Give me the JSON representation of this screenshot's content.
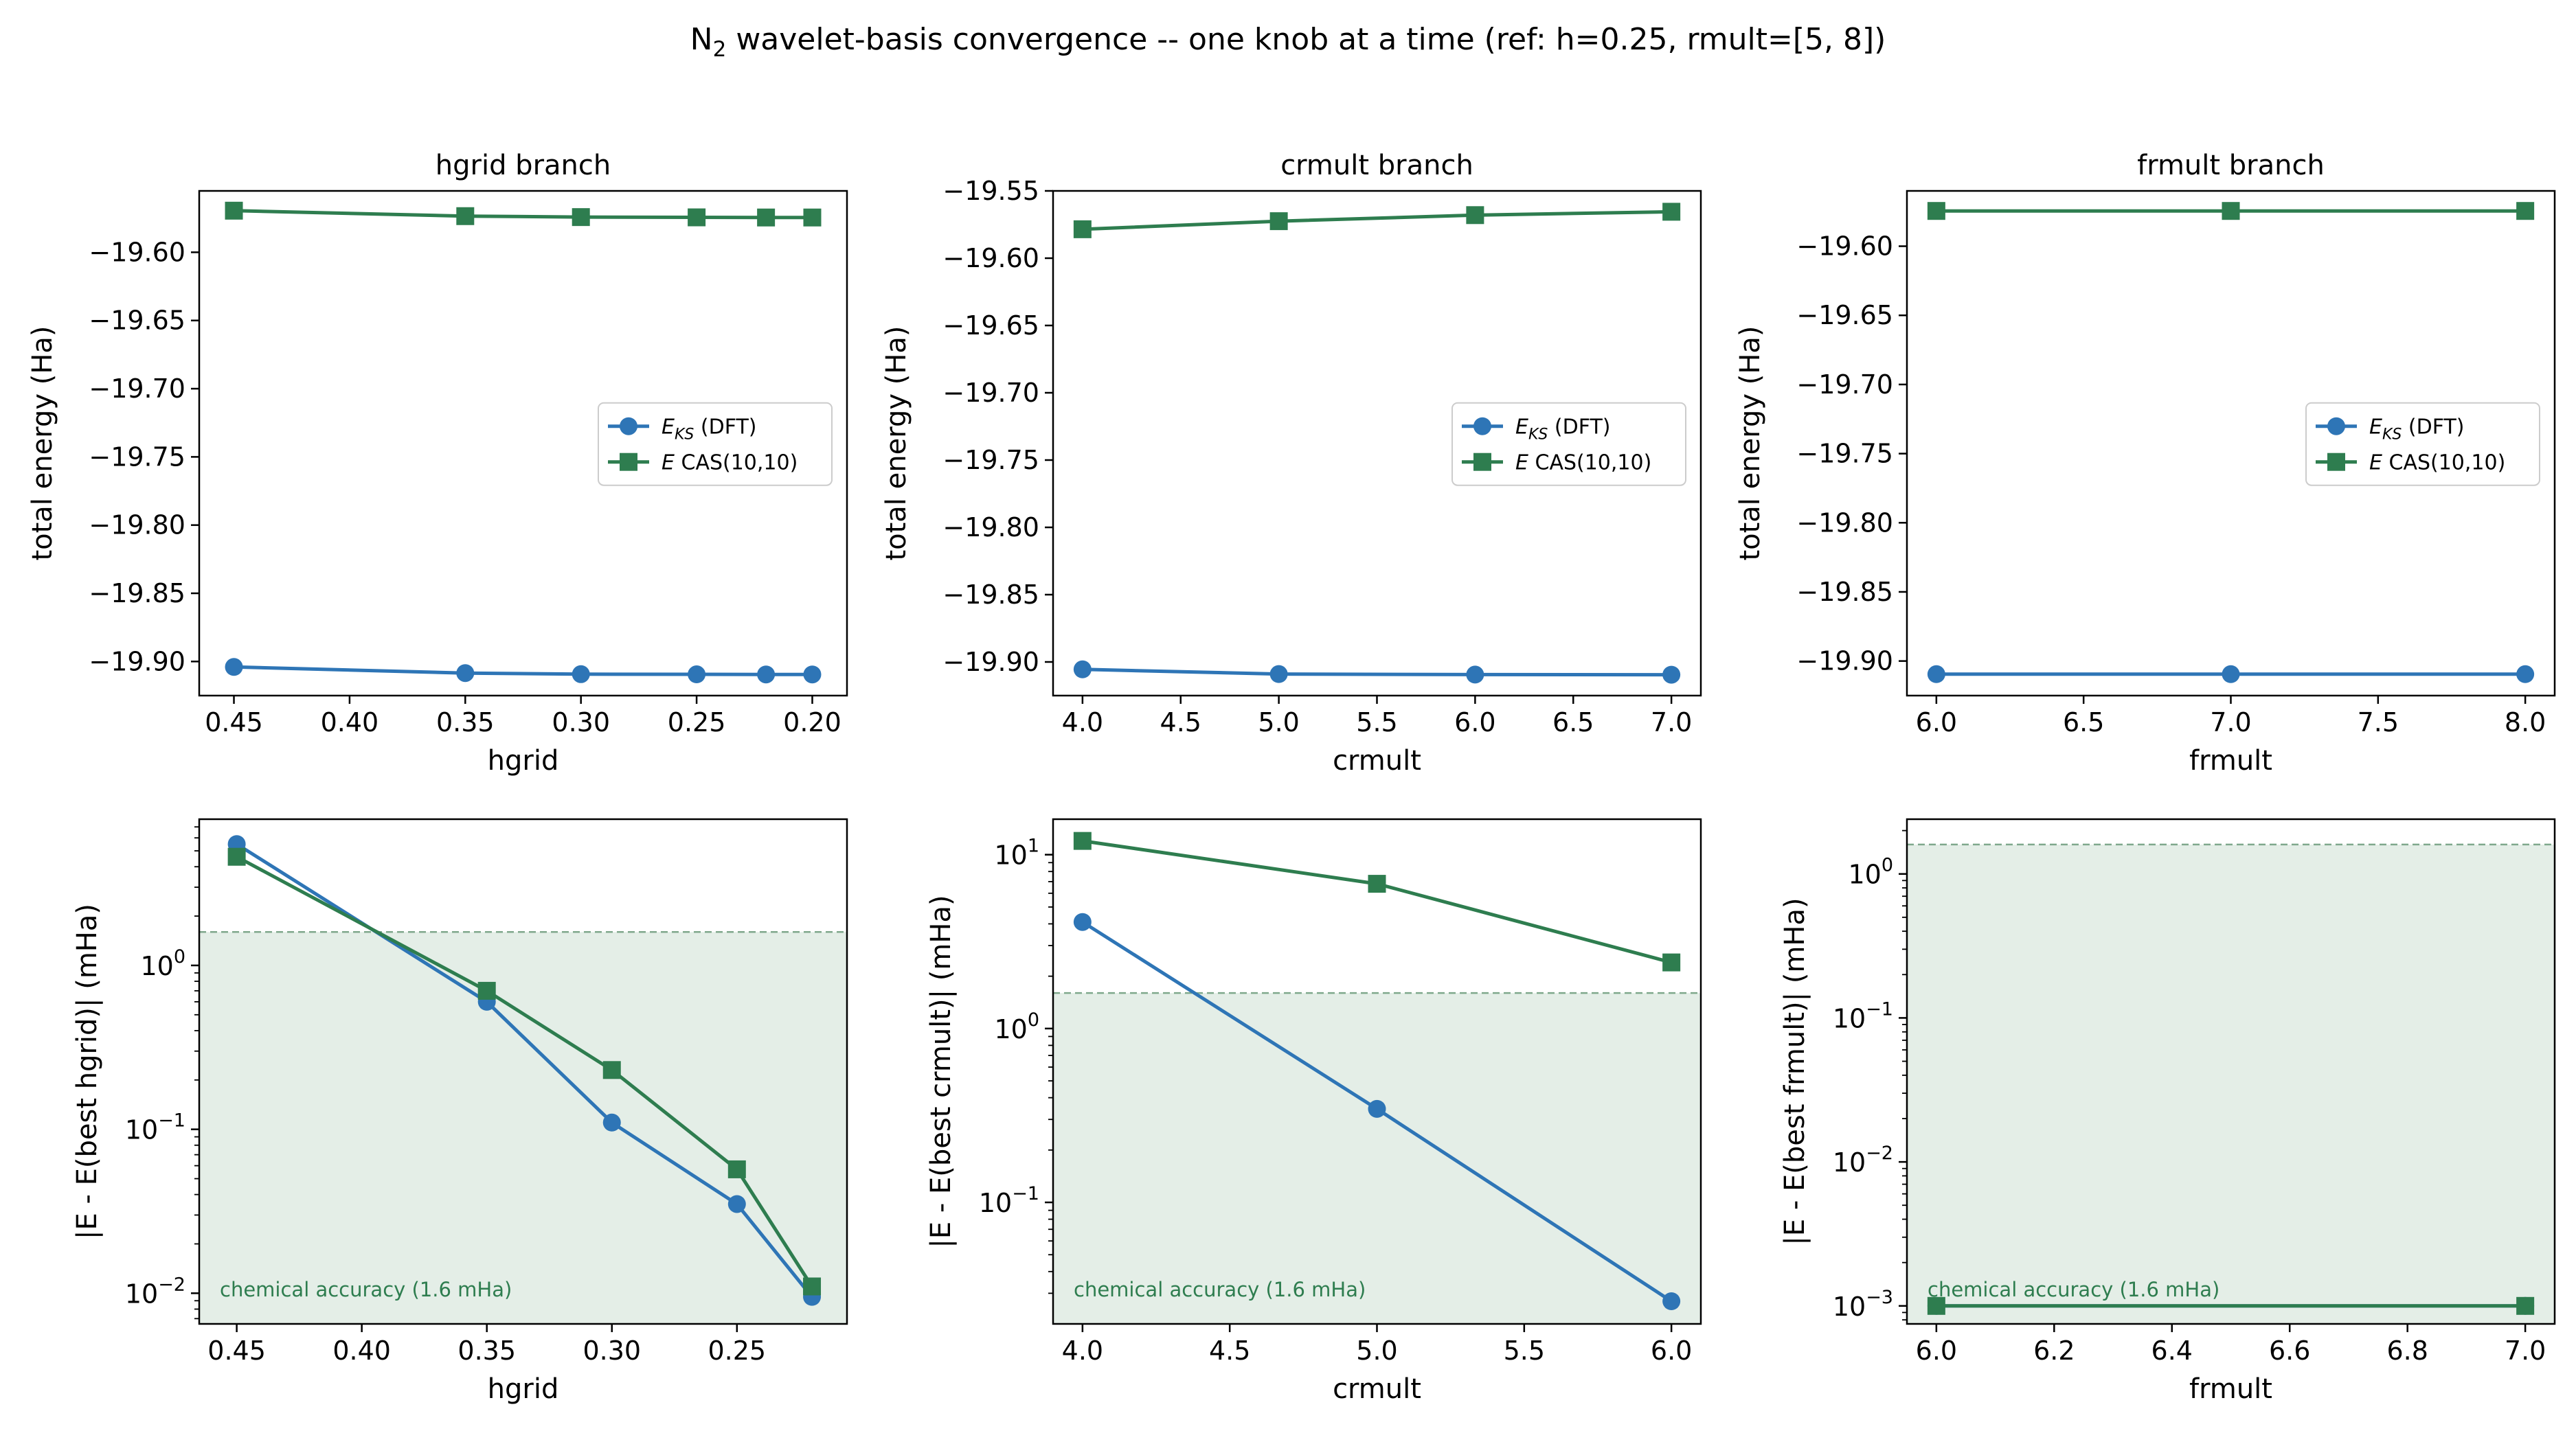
{
  "figure": {
    "title_main": "N",
    "title_sub": "2",
    "title_rest": " wavelet-basis convergence -- one knob at a time (ref: h=0.25, rmult=[5, 8])"
  },
  "legend_labels": {
    "dft_sym": "E",
    "dft_sub": "KS",
    "dft_rest": " (DFT)",
    "cas_sym": "E",
    "cas_rest": " CAS(10,10)"
  },
  "threshold": {
    "value": 1.6,
    "label": "chemical accuracy (1.6 mHa)"
  },
  "colors": {
    "dft": "#2e75b6",
    "cas": "#2e7d4f",
    "shade": "#e4eee7",
    "threshold_line": "#7fa88c"
  },
  "chart_data": [
    {
      "type": "line",
      "title": "hgrid branch",
      "xlabel": "hgrid",
      "ylabel": "total energy (Ha)",
      "x_inverted": true,
      "xlim": [
        0.465,
        0.185
      ],
      "ylim": [
        -19.925,
        -19.555
      ],
      "xticks": [
        0.45,
        0.4,
        0.35,
        0.3,
        0.25,
        0.2
      ],
      "xtick_labels": [
        "0.45",
        "0.40",
        "0.35",
        "0.30",
        "0.25",
        "0.20"
      ],
      "yticks": [
        -19.6,
        -19.65,
        -19.7,
        -19.75,
        -19.8,
        -19.85,
        -19.9
      ],
      "ytick_labels": [
        "−19.60",
        "−19.65",
        "−19.70",
        "−19.75",
        "−19.80",
        "−19.85",
        "−19.90"
      ],
      "x": [
        0.45,
        0.35,
        0.3,
        0.25,
        0.22,
        0.2
      ],
      "legend": "center-right",
      "series": [
        {
          "key": "dft",
          "marker": "circle",
          "values": [
            -19.904,
            -19.9085,
            -19.9093,
            -19.9094,
            -19.9095,
            -19.9095
          ]
        },
        {
          "key": "cas",
          "marker": "square",
          "values": [
            -19.5695,
            -19.5735,
            -19.5742,
            -19.5744,
            -19.5745,
            -19.5745
          ]
        }
      ]
    },
    {
      "type": "line",
      "title": "crmult branch",
      "xlabel": "crmult",
      "ylabel": "total energy (Ha)",
      "x_inverted": false,
      "xlim": [
        3.85,
        7.15
      ],
      "ylim": [
        -19.925,
        -19.55
      ],
      "xticks": [
        4.0,
        4.5,
        5.0,
        5.5,
        6.0,
        6.5,
        7.0
      ],
      "xtick_labels": [
        "4.0",
        "4.5",
        "5.0",
        "5.5",
        "6.0",
        "6.5",
        "7.0"
      ],
      "yticks": [
        -19.55,
        -19.6,
        -19.65,
        -19.7,
        -19.75,
        -19.8,
        -19.85,
        -19.9
      ],
      "ytick_labels": [
        "−19.55",
        "−19.60",
        "−19.65",
        "−19.70",
        "−19.75",
        "−19.80",
        "−19.85",
        "−19.90"
      ],
      "x": [
        4.0,
        5.0,
        6.0,
        7.0
      ],
      "legend": "center-right",
      "series": [
        {
          "key": "dft",
          "marker": "circle",
          "values": [
            -19.9055,
            -19.909,
            -19.9094,
            -19.9095
          ]
        },
        {
          "key": "cas",
          "marker": "square",
          "values": [
            -19.5785,
            -19.5725,
            -19.568,
            -19.5655
          ]
        }
      ]
    },
    {
      "type": "line",
      "title": "frmult branch",
      "xlabel": "frmult",
      "ylabel": "total energy (Ha)",
      "x_inverted": false,
      "xlim": [
        5.9,
        8.1
      ],
      "ylim": [
        -19.925,
        -19.56
      ],
      "xticks": [
        6.0,
        6.5,
        7.0,
        7.5,
        8.0
      ],
      "xtick_labels": [
        "6.0",
        "6.5",
        "7.0",
        "7.5",
        "8.0"
      ],
      "yticks": [
        -19.6,
        -19.65,
        -19.7,
        -19.75,
        -19.8,
        -19.85,
        -19.9
      ],
      "ytick_labels": [
        "−19.60",
        "−19.65",
        "−19.70",
        "−19.75",
        "−19.80",
        "−19.85",
        "−19.90"
      ],
      "x": [
        6.0,
        7.0,
        8.0
      ],
      "legend": "center-right",
      "series": [
        {
          "key": "dft",
          "marker": "circle",
          "values": [
            -19.9095,
            -19.9095,
            -19.9095
          ]
        },
        {
          "key": "cas",
          "marker": "square",
          "values": [
            -19.5745,
            -19.5745,
            -19.5745
          ]
        }
      ]
    },
    {
      "type": "line",
      "log_y": true,
      "title": "",
      "xlabel": "hgrid",
      "ylabel": "|E - E(best hgrid)| (mHa)",
      "x_inverted": true,
      "xlim": [
        0.465,
        0.206
      ],
      "ylim": [
        0.0065,
        7.8
      ],
      "xticks": [
        0.45,
        0.4,
        0.35,
        0.3,
        0.25
      ],
      "xtick_labels": [
        "0.45",
        "0.40",
        "0.35",
        "0.30",
        "0.25"
      ],
      "yticks": [
        0.01,
        0.1,
        1
      ],
      "ytick_base": [
        "10",
        "10",
        "10"
      ],
      "ytick_exp": [
        "−2",
        "−1",
        "0"
      ],
      "x": [
        0.45,
        0.35,
        0.3,
        0.25,
        0.22
      ],
      "series": [
        {
          "key": "dft",
          "marker": "circle",
          "values": [
            5.5,
            0.6,
            0.11,
            0.035,
            0.0095
          ]
        },
        {
          "key": "cas",
          "marker": "square",
          "values": [
            4.6,
            0.7,
            0.23,
            0.057,
            0.011
          ]
        }
      ]
    },
    {
      "type": "line",
      "log_y": true,
      "title": "",
      "xlabel": "crmult",
      "ylabel": "|E - E(best crmult)| (mHa)",
      "x_inverted": false,
      "xlim": [
        3.9,
        6.1
      ],
      "ylim": [
        0.02,
        16
      ],
      "xticks": [
        4.0,
        4.5,
        5.0,
        5.5,
        6.0
      ],
      "xtick_labels": [
        "4.0",
        "4.5",
        "5.0",
        "5.5",
        "6.0"
      ],
      "yticks": [
        0.1,
        1,
        10
      ],
      "ytick_base": [
        "10",
        "10",
        "10"
      ],
      "ytick_exp": [
        "−1",
        "0",
        "1"
      ],
      "x": [
        4.0,
        5.0,
        6.0
      ],
      "series": [
        {
          "key": "dft",
          "marker": "circle",
          "values": [
            4.1,
            0.345,
            0.027
          ]
        },
        {
          "key": "cas",
          "marker": "square",
          "values": [
            12.0,
            6.8,
            2.4
          ]
        }
      ]
    },
    {
      "type": "line",
      "log_y": true,
      "title": "",
      "xlabel": "frmult",
      "ylabel": "|E - E(best frmult)| (mHa)",
      "x_inverted": false,
      "xlim": [
        5.95,
        7.05
      ],
      "ylim": [
        0.00075,
        2.4
      ],
      "xticks": [
        6.0,
        6.2,
        6.4,
        6.6,
        6.8,
        7.0
      ],
      "xtick_labels": [
        "6.0",
        "6.2",
        "6.4",
        "6.6",
        "6.8",
        "7.0"
      ],
      "yticks": [
        0.001,
        0.01,
        0.1,
        1
      ],
      "ytick_base": [
        "10",
        "10",
        "10",
        "10"
      ],
      "ytick_exp": [
        "−3",
        "−2",
        "−1",
        "0"
      ],
      "x": [
        6.0,
        7.0
      ],
      "series": [
        {
          "key": "dft",
          "marker": "circle",
          "values": [
            0.001,
            0.001
          ]
        },
        {
          "key": "cas",
          "marker": "square",
          "values": [
            0.001,
            0.001
          ]
        }
      ]
    }
  ]
}
